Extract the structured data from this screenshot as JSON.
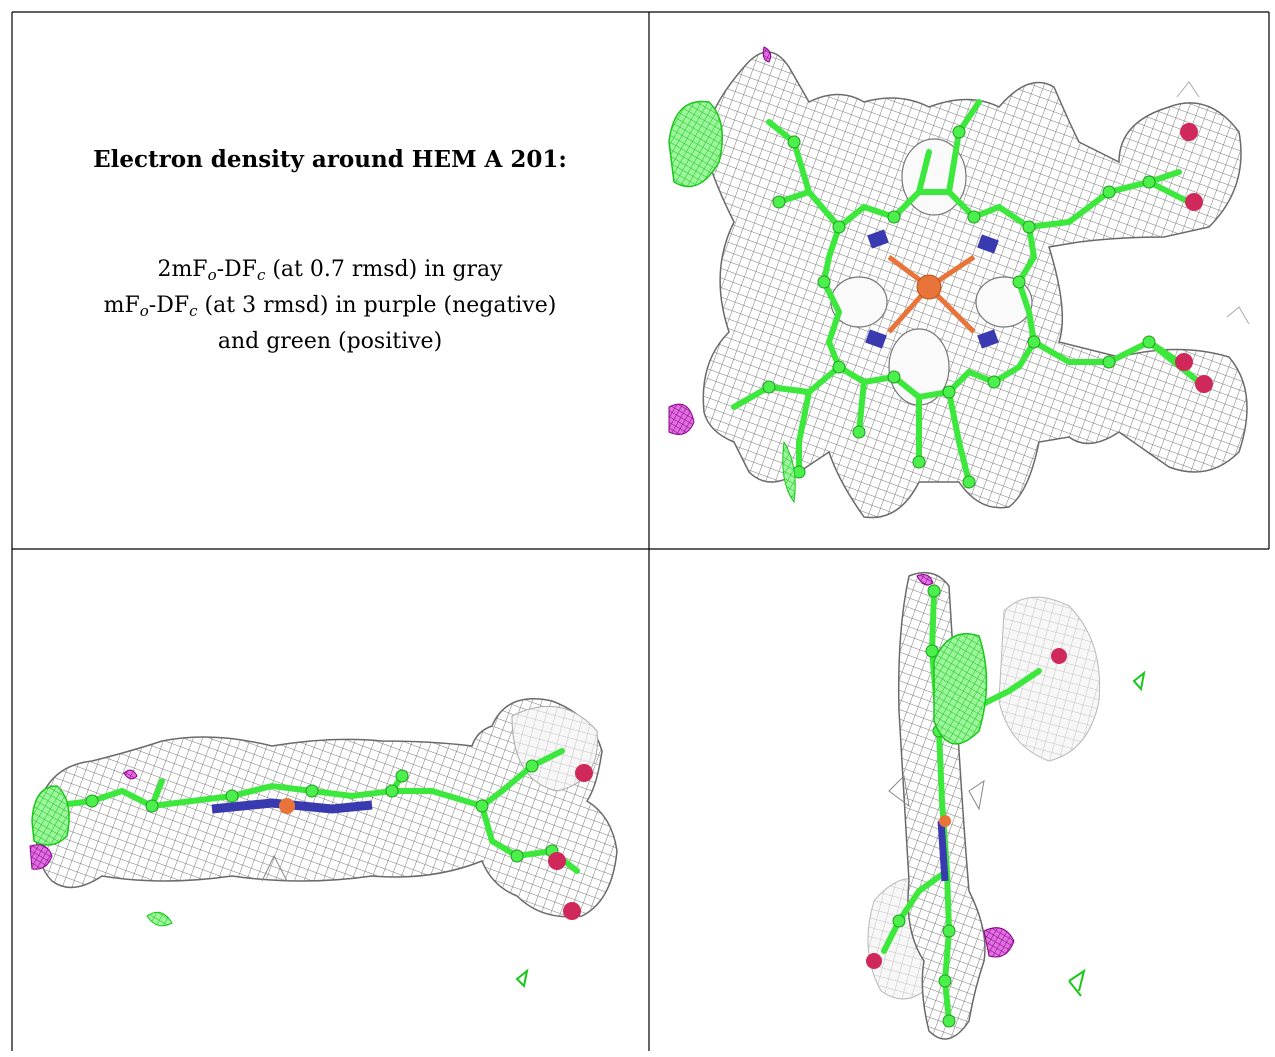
{
  "title": "Electron density around HEM A 201:",
  "caption": {
    "line1": {
      "pre": "2mF",
      "sub1": "o",
      "mid": "-DF",
      "sub2": "c",
      "post": " (at 0.7 rmsd) in gray"
    },
    "line2": {
      "pre": "mF",
      "sub1": "o",
      "mid": "-DF",
      "sub2": "c",
      "post": " (at 3 rmsd) in purple (negative)"
    },
    "line3": "and green (positive)"
  },
  "colors": {
    "mesh_gray": "#8a8a8a",
    "carbon_green": "#3de83d",
    "nitrogen_blue": "#3a3ab0",
    "iron_orange": "#e8743a",
    "oxygen_red": "#d0285a",
    "negative_purple": "#b010b0",
    "positive_green": "#22ee22"
  },
  "views": [
    {
      "name": "top-view",
      "icon": "heme-front-view-image"
    },
    {
      "name": "side-view",
      "icon": "heme-edge-view-image"
    },
    {
      "name": "end-view",
      "icon": "heme-end-view-image"
    }
  ]
}
